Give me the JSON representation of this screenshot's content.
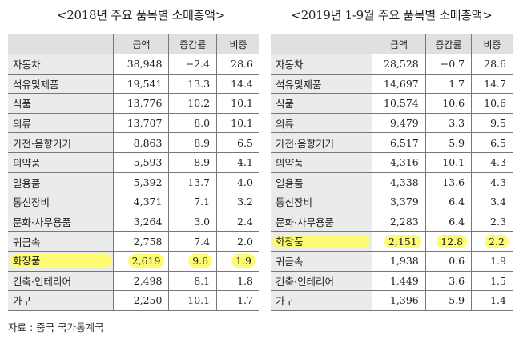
{
  "tables": [
    {
      "title": "<2018년 주요 품목별 소매총액>",
      "headers": [
        "",
        "금액",
        "증감률",
        "비중"
      ],
      "rows": [
        {
          "category": "자동차",
          "amount": "38,948",
          "change": "−2.4",
          "share": "28.6",
          "highlight": false
        },
        {
          "category": "석유및제품",
          "amount": "19,541",
          "change": "13.3",
          "share": "14.4",
          "highlight": false
        },
        {
          "category": "식품",
          "amount": "13,776",
          "change": "10.2",
          "share": "10.1",
          "highlight": false
        },
        {
          "category": "의류",
          "amount": "13,707",
          "change": "8.0",
          "share": "10.1",
          "highlight": false
        },
        {
          "category": "가전·음향기기",
          "amount": "8,863",
          "change": "8.9",
          "share": "6.5",
          "highlight": false
        },
        {
          "category": "의약품",
          "amount": "5,593",
          "change": "8.9",
          "share": "4.1",
          "highlight": false
        },
        {
          "category": "일용품",
          "amount": "5,392",
          "change": "13.7",
          "share": "4.0",
          "highlight": false
        },
        {
          "category": "통신장비",
          "amount": "4,371",
          "change": "7.1",
          "share": "3.2",
          "highlight": false
        },
        {
          "category": "문화·사무용품",
          "amount": "3,264",
          "change": "3.0",
          "share": "2.4",
          "highlight": false
        },
        {
          "category": "귀금속",
          "amount": "2,758",
          "change": "7.4",
          "share": "2.0",
          "highlight": false
        },
        {
          "category": "화장품",
          "amount": "2,619",
          "change": "9.6",
          "share": "1.9",
          "highlight": true
        },
        {
          "category": "건축·인테리어",
          "amount": "2,498",
          "change": "8.1",
          "share": "1.8",
          "highlight": false
        },
        {
          "category": "가구",
          "amount": "2,250",
          "change": "10.1",
          "share": "1.7",
          "highlight": false
        }
      ]
    },
    {
      "title": "<2019년 1-9월 주요 품목별 소매총액>",
      "headers": [
        "",
        "금액",
        "증감률",
        "비중"
      ],
      "rows": [
        {
          "category": "자동차",
          "amount": "28,528",
          "change": "−0.7",
          "share": "28.6",
          "highlight": false
        },
        {
          "category": "석유및제품",
          "amount": "14,697",
          "change": "1.7",
          "share": "14.7",
          "highlight": false
        },
        {
          "category": "식품",
          "amount": "10,574",
          "change": "10.6",
          "share": "10.6",
          "highlight": false
        },
        {
          "category": "의류",
          "amount": "9,479",
          "change": "3.3",
          "share": "9.5",
          "highlight": false
        },
        {
          "category": "가전·음향기기",
          "amount": "6,517",
          "change": "5.9",
          "share": "6.5",
          "highlight": false
        },
        {
          "category": "의약품",
          "amount": "4,316",
          "change": "10.1",
          "share": "4.3",
          "highlight": false
        },
        {
          "category": "일용품",
          "amount": "4,338",
          "change": "13.6",
          "share": "4.3",
          "highlight": false
        },
        {
          "category": "통신장비",
          "amount": "3,379",
          "change": "6.4",
          "share": "3.4",
          "highlight": false
        },
        {
          "category": "문화·사무용품",
          "amount": "2,283",
          "change": "6.4",
          "share": "2.3",
          "highlight": false
        },
        {
          "category": "화장품",
          "amount": "2,151",
          "change": "12.8",
          "share": "2.2",
          "highlight": true
        },
        {
          "category": "귀금속",
          "amount": "1,938",
          "change": "0.6",
          "share": "1.9",
          "highlight": false
        },
        {
          "category": "건축·인테리어",
          "amount": "1,449",
          "change": "3.6",
          "share": "1.5",
          "highlight": false
        },
        {
          "category": "가구",
          "amount": "1,396",
          "change": "5.9",
          "share": "1.4",
          "highlight": false
        }
      ]
    }
  ],
  "source": "자료 : 중국 국가통계국",
  "colors": {
    "highlight": "#fdfb72",
    "header_bg": "#e0e0e0",
    "category_bg": "#ebebeb"
  }
}
